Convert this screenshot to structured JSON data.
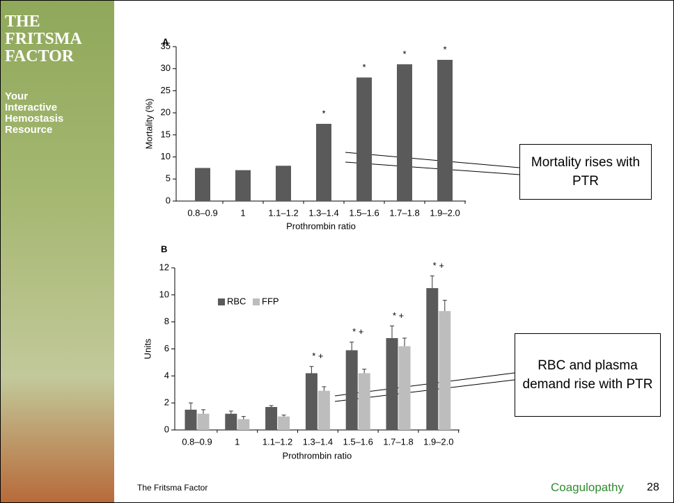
{
  "sidebar": {
    "title": "THE FRITSMA FACTOR",
    "subtitle": "Your Interactive Hemostasis Resource"
  },
  "chart_data": [
    {
      "type": "bar",
      "panel": "A",
      "x_label": "Prothrombin ratio",
      "y_label": "Mortality (%)",
      "categories": [
        "0.8–0.9",
        "1",
        "1.1–1.2",
        "1.3–1.4",
        "1.5–1.6",
        "1.7–1.8",
        "1.9–2.0"
      ],
      "values": [
        7.5,
        7,
        8,
        17.5,
        28,
        31,
        32
      ],
      "color": "#5a5a5a",
      "markers": [
        null,
        null,
        null,
        "*",
        "*",
        "*",
        "*"
      ],
      "ylim": [
        0,
        35
      ],
      "yticks": [
        0,
        5,
        10,
        15,
        20,
        25,
        30,
        35
      ]
    },
    {
      "type": "grouped-bar",
      "panel": "B",
      "x_label": "Prothrombin ratio",
      "y_label": "Units",
      "categories": [
        "0.8–0.9",
        "1",
        "1.1–1.2",
        "1.3–1.4",
        "1.5–1.6",
        "1.7–1.8",
        "1.9–2.0"
      ],
      "series": [
        {
          "name": "RBC",
          "color": "#5a5a5a",
          "values": [
            1.5,
            1.2,
            1.7,
            4.2,
            5.9,
            6.8,
            10.5
          ],
          "errors": [
            0.5,
            0.2,
            0.1,
            0.5,
            0.6,
            0.9,
            0.9
          ]
        },
        {
          "name": "FFP",
          "color": "#bdbdbd",
          "values": [
            1.2,
            0.8,
            1.0,
            2.9,
            4.2,
            6.2,
            8.8
          ],
          "errors": [
            0.3,
            0.2,
            0.1,
            0.3,
            0.3,
            0.6,
            0.8
          ]
        }
      ],
      "markers": [
        null,
        null,
        null,
        "* +",
        "* +",
        "* +",
        "* +"
      ],
      "ylim": [
        0,
        12
      ],
      "yticks": [
        0,
        2,
        4,
        6,
        8,
        10,
        12
      ],
      "legend": "upper-left"
    }
  ],
  "callouts": [
    "Mortality rises with PTR",
    "RBC and plasma demand rise with PTR"
  ],
  "footer": {
    "left": "The Fritsma Factor",
    "section": "Coagulopathy",
    "page": "28"
  }
}
